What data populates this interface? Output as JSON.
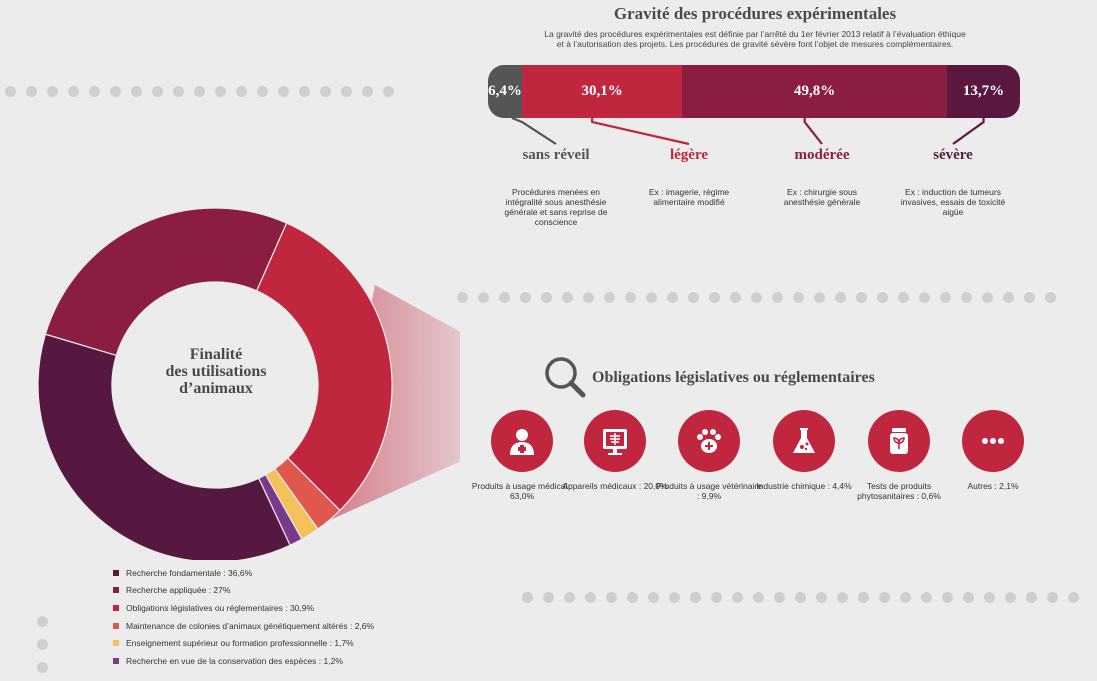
{
  "severity": {
    "title": "Gravité des procédures expérimentales",
    "description_1": "La gravité des procédures expérimentales est définie par l’arrêté du 1er février 2013 relatif à l’évaluation éthique",
    "description_2": "et à l’autorisation des projets. Les procédures de gravité sévère font l’objet de mesures complémentaires.",
    "segments": [
      {
        "pct_label": "6,4%",
        "value": 6.4,
        "color": "#555555",
        "name": "sans réveil",
        "name_color": "#555555",
        "note": "Procédures menées en intégralité sous anesthésie générale et sans reprise de conscience"
      },
      {
        "pct_label": "30,1%",
        "value": 30.1,
        "color": "#c0273f",
        "name": "légère",
        "name_color": "#c0273f",
        "note": "Ex : imagerie, régime alimentaire modifié"
      },
      {
        "pct_label": "49,8%",
        "value": 49.8,
        "color": "#8b1d40",
        "name": "modérée",
        "name_color": "#8b1d40",
        "note": "Ex : chirurgie sous anesthésie générale"
      },
      {
        "pct_label": "13,7%",
        "value": 13.7,
        "color": "#5a1840",
        "name": "sévère",
        "name_color": "#5a1840",
        "note": "Ex : induction de tumeurs invasives, essais de toxicité aigüe"
      }
    ]
  },
  "chart_data": {
    "type": "pie",
    "title": "Finalité des utilisations d’animaux",
    "title_lines": [
      "Finalité",
      "des utilisations",
      "d’animaux"
    ],
    "slices": [
      {
        "label": "Recherche fondamentale : 36,6%",
        "value": 36.6,
        "color": "#561840"
      },
      {
        "label": "Recherche appliquée : 27%",
        "value": 27.0,
        "color": "#8b1d40"
      },
      {
        "label": "Obligations législatives ou réglementaires : 30,9%",
        "value": 30.9,
        "color": "#c0273f"
      },
      {
        "label": "Maintenance de colonies d’animaux génétiquement altérés : 2,6%",
        "value": 2.6,
        "color": "#e0574f"
      },
      {
        "label": "Enseignement supérieur ou formation professionnelle : 1,7%",
        "value": 1.7,
        "color": "#f5c15a"
      },
      {
        "label": "Recherche en vue de la conservation des espèces : 1,2%",
        "value": 1.2,
        "color": "#7a3a8c"
      }
    ]
  },
  "obligations": {
    "title": "Obligations législatives ou réglementaires",
    "icon": "magnifier-icon",
    "accent": "#c0273f",
    "items": [
      {
        "icon": "doctor-icon",
        "label": "Produits à usage médical : 63,0%"
      },
      {
        "icon": "xray-icon",
        "label": "Appareils médicaux : 20,0%"
      },
      {
        "icon": "paw-icon",
        "label": "Produits à usage vétérinaire : 9,9%"
      },
      {
        "icon": "flask-icon",
        "label": "Industrie chimique : 4,4%"
      },
      {
        "icon": "plant-jar-icon",
        "label": "Tests de produits phytosanitaires : 0,6%"
      },
      {
        "icon": "ellipsis-icon",
        "label": "Autres : 2,1%"
      }
    ]
  }
}
